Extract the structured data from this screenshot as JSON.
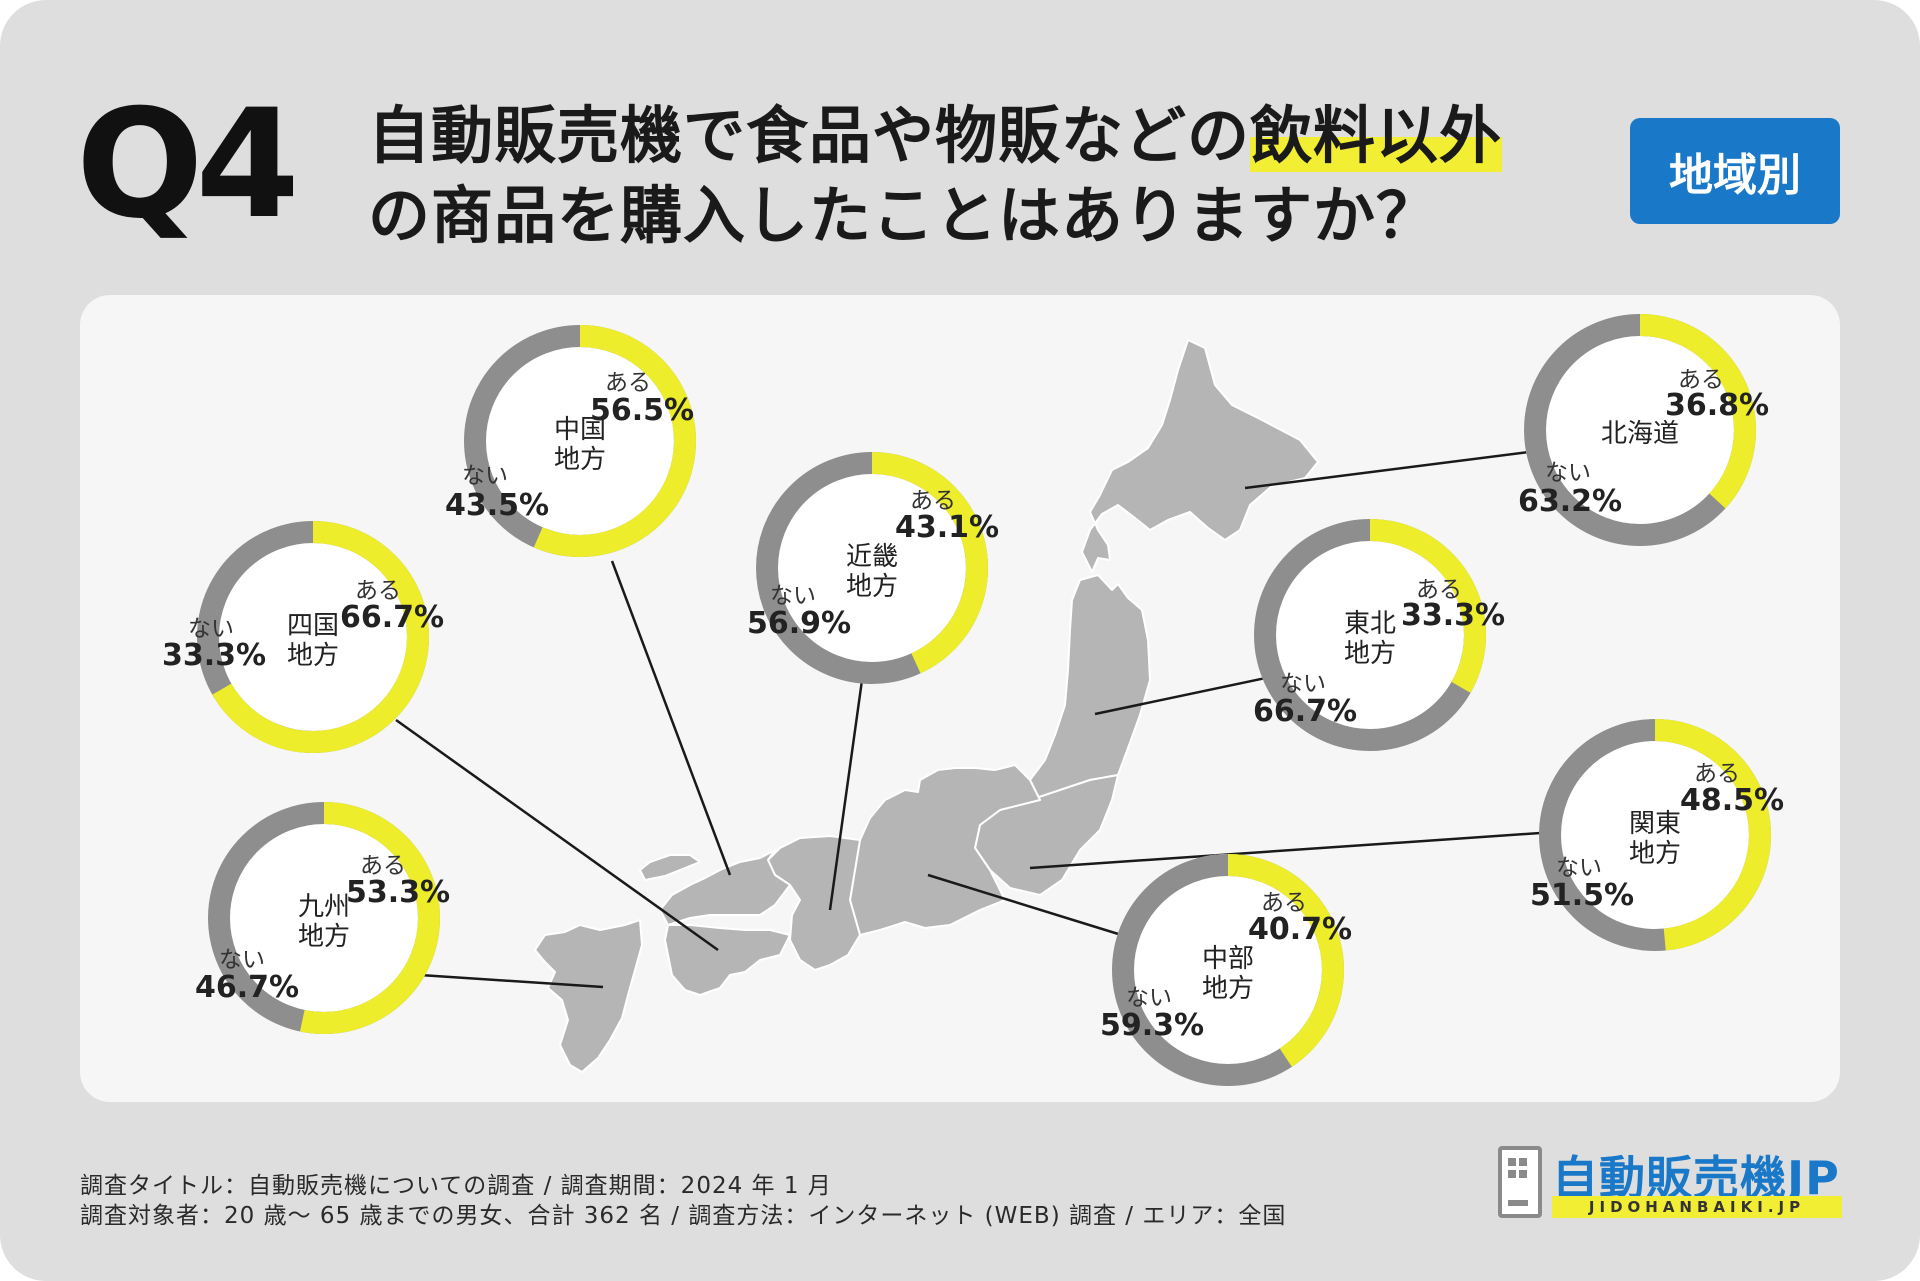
{
  "question": {
    "number": "Q4",
    "line1_before": "自動販売機で食品や物販などの",
    "line1_highlight": "飲料以外",
    "line2": "の商品を購入したことはありますか？"
  },
  "badge": "地域別",
  "chart_data": {
    "type": "pie",
    "colors": {
      "yes": "#eded2c",
      "no": "#8e8e8e"
    },
    "series_labels": {
      "yes": "ある",
      "no": "ない"
    },
    "regions": [
      {
        "name": "北海道",
        "yes": 36.8,
        "no": 63.2,
        "yes_text": "36.8%",
        "no_text": "63.2%"
      },
      {
        "name": "東北\n地方",
        "yes": 33.3,
        "no": 66.7,
        "yes_text": "33.3%",
        "no_text": "66.7%"
      },
      {
        "name": "関東\n地方",
        "yes": 48.5,
        "no": 51.5,
        "yes_text": "48.5%",
        "no_text": "51.5%"
      },
      {
        "name": "中部\n地方",
        "yes": 40.7,
        "no": 59.3,
        "yes_text": "40.7%",
        "no_text": "59.3%"
      },
      {
        "name": "近畿\n地方",
        "yes": 43.1,
        "no": 56.9,
        "yes_text": "43.1%",
        "no_text": "56.9%"
      },
      {
        "name": "中国\n地方",
        "yes": 56.5,
        "no": 43.5,
        "yes_text": "56.5%",
        "no_text": "43.5%"
      },
      {
        "name": "四国\n地方",
        "yes": 66.7,
        "no": 33.3,
        "yes_text": "66.7%",
        "no_text": "33.3%"
      },
      {
        "name": "九州\n地方",
        "yes": 53.3,
        "no": 46.7,
        "yes_text": "53.3%",
        "no_text": "46.7%"
      }
    ]
  },
  "footer": {
    "line1": "調査タイトル：自動販売機についての調査 / 調査期間：2024 年 1 月",
    "line2": "調査対象者：20 歳～ 65 歳までの男女、合計 362 名 / 調査方法：インターネット (WEB) 調査 / エリア：全国"
  },
  "logo": {
    "text": "自動販売機JP",
    "sub": "JIDOHANBAIKI.JP"
  }
}
